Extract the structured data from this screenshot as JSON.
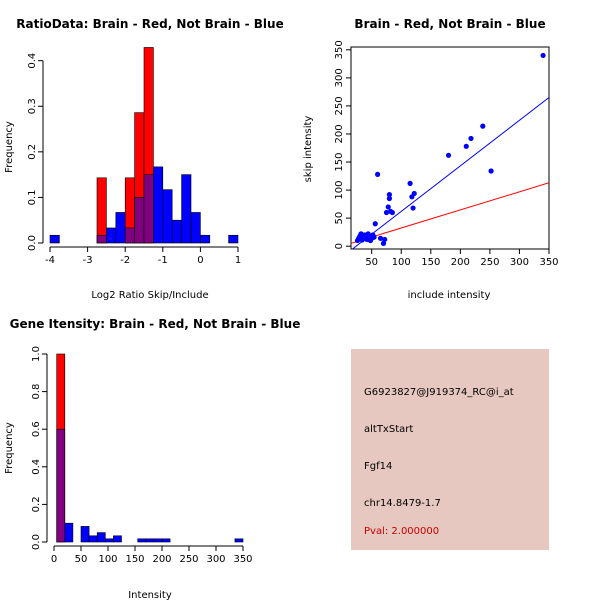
{
  "colors": {
    "red": "#ff0000",
    "blue": "#0000ff",
    "overlap": "#800080",
    "info_bg": "#e6c8c0",
    "pval": "#cc0000"
  },
  "info_panel": {
    "probe_id": "G6923827@J919374_RC@i_at",
    "event_type": "altTxStart",
    "gene": "Fgf14",
    "location": "chr14.8479-1.7",
    "pval": "Pval: 2.000000"
  },
  "chart_data": [
    {
      "type": "histogram",
      "title": "RatioData: Brain - Red, Not Brain - Blue",
      "xlabel": "Log2 Ratio Skip/Include",
      "ylabel": "Frequency",
      "xlim": [
        -4,
        1
      ],
      "ylim": [
        0,
        0.43
      ],
      "xticks": [
        -4,
        -3,
        -2,
        -1,
        0,
        1
      ],
      "yticks": [
        0.0,
        0.1,
        0.2,
        0.3,
        0.4
      ],
      "bin_width": 0.25,
      "series": [
        {
          "name": "Brain",
          "color": "red",
          "bins": [
            [
              -2.75,
              0.143
            ],
            [
              -2.0,
              0.143
            ],
            [
              -1.75,
              0.286
            ],
            [
              -1.5,
              0.429
            ]
          ]
        },
        {
          "name": "Not Brain",
          "color": "blue",
          "bins": [
            [
              -4.0,
              0.017
            ],
            [
              -2.75,
              0.017
            ],
            [
              -2.5,
              0.033
            ],
            [
              -2.25,
              0.067
            ],
            [
              -2.0,
              0.033
            ],
            [
              -1.75,
              0.1
            ],
            [
              -1.5,
              0.15
            ],
            [
              -1.25,
              0.167
            ],
            [
              -1.0,
              0.117
            ],
            [
              -0.75,
              0.05
            ],
            [
              -0.5,
              0.15
            ],
            [
              -0.25,
              0.067
            ],
            [
              0.0,
              0.017
            ],
            [
              0.75,
              0.017
            ]
          ]
        }
      ]
    },
    {
      "type": "scatter",
      "title": "Brain - Red, Not Brain - Blue",
      "xlabel": "include intensity",
      "ylabel": "skip intensity",
      "xlim": [
        15,
        350
      ],
      "ylim": [
        -5,
        355
      ],
      "xticks": [
        50,
        100,
        150,
        200,
        250,
        300,
        350
      ],
      "yticks": [
        0,
        50,
        100,
        150,
        200,
        250,
        300,
        350
      ],
      "points": [
        [
          26,
          10
        ],
        [
          28,
          14
        ],
        [
          30,
          18
        ],
        [
          32,
          22
        ],
        [
          34,
          11
        ],
        [
          35,
          15
        ],
        [
          38,
          20
        ],
        [
          40,
          16
        ],
        [
          42,
          12
        ],
        [
          44,
          22
        ],
        [
          46,
          18
        ],
        [
          48,
          10
        ],
        [
          50,
          14
        ],
        [
          52,
          20
        ],
        [
          54,
          16
        ],
        [
          56,
          40
        ],
        [
          60,
          128
        ],
        [
          65,
          14
        ],
        [
          70,
          5
        ],
        [
          72,
          12
        ],
        [
          75,
          60
        ],
        [
          78,
          70
        ],
        [
          80,
          85
        ],
        [
          80,
          92
        ],
        [
          82,
          62
        ],
        [
          85,
          60
        ],
        [
          115,
          112
        ],
        [
          118,
          88
        ],
        [
          120,
          68
        ],
        [
          122,
          94
        ],
        [
          180,
          162
        ],
        [
          210,
          178
        ],
        [
          218,
          192
        ],
        [
          238,
          214
        ],
        [
          252,
          134
        ],
        [
          340,
          340
        ]
      ],
      "lines": [
        {
          "name": "Not Brain fit",
          "color": "blue",
          "x": [
            15,
            350
          ],
          "y": [
            -7,
            265
          ]
        },
        {
          "name": "Brain fit",
          "color": "red",
          "x": [
            15,
            350
          ],
          "y": [
            5,
            113
          ]
        }
      ]
    },
    {
      "type": "histogram",
      "title": "Gene Itensity: Brain - Red, Not Brain - Blue",
      "xlabel": "Intensity",
      "ylabel": "Frequency",
      "xlim": [
        0,
        350
      ],
      "ylim": [
        0,
        1.0
      ],
      "xticks": [
        0,
        50,
        100,
        150,
        200,
        250,
        300,
        350
      ],
      "yticks": [
        0.0,
        0.2,
        0.4,
        0.6,
        0.8,
        1.0
      ],
      "bin_width": 15,
      "series": [
        {
          "name": "Brain",
          "color": "red",
          "bins": [
            [
              5,
              1.0
            ]
          ]
        },
        {
          "name": "Not Brain",
          "color": "blue",
          "bins": [
            [
              5,
              0.6
            ],
            [
              20,
              0.1
            ],
            [
              50,
              0.083
            ],
            [
              65,
              0.033
            ],
            [
              80,
              0.05
            ],
            [
              95,
              0.017
            ],
            [
              110,
              0.033
            ],
            [
              155,
              0.017
            ],
            [
              170,
              0.017
            ],
            [
              185,
              0.017
            ],
            [
              200,
              0.017
            ],
            [
              335,
              0.017
            ]
          ]
        }
      ]
    }
  ]
}
